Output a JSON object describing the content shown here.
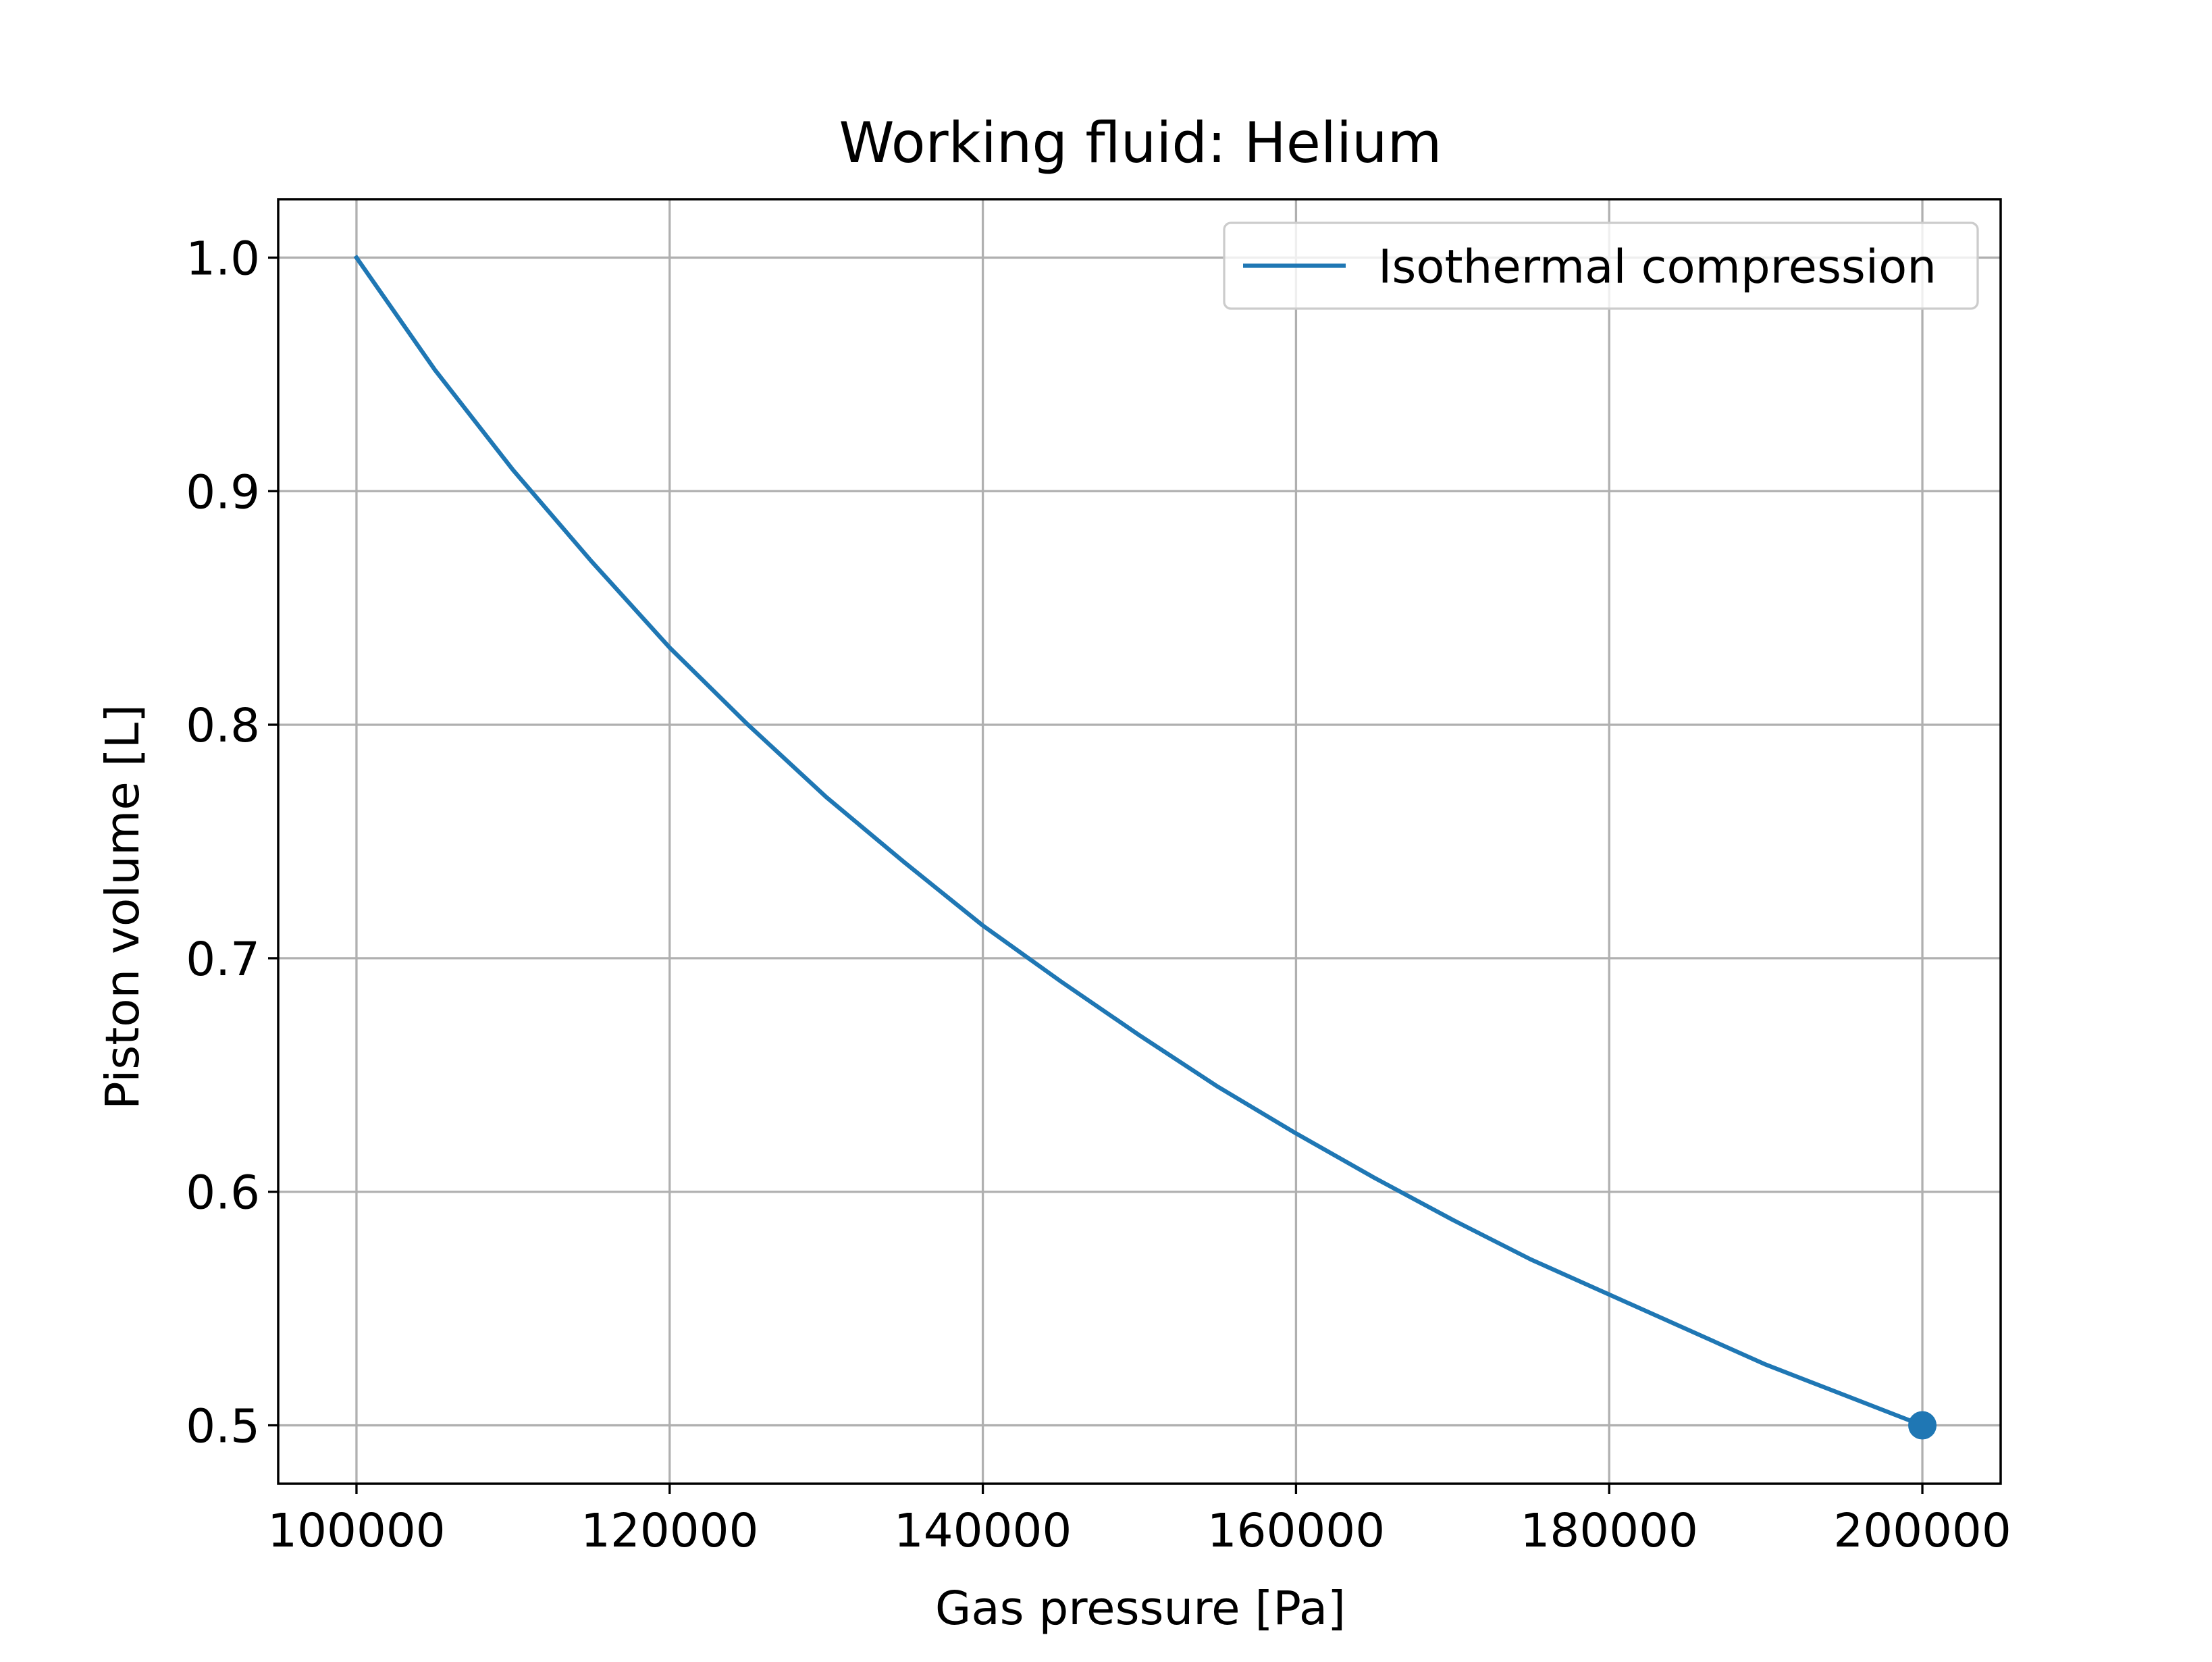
{
  "chart_data": {
    "type": "line",
    "title": "Working fluid: Helium",
    "xlabel": "Gas pressure [Pa]",
    "ylabel": "Piston volume [L]",
    "xlim": [
      95000,
      205000
    ],
    "ylim": [
      0.475,
      1.025
    ],
    "xticks": [
      100000,
      120000,
      140000,
      160000,
      180000,
      200000
    ],
    "xtick_labels": [
      "100000",
      "120000",
      "140000",
      "160000",
      "180000",
      "200000"
    ],
    "yticks": [
      0.5,
      0.6,
      0.7,
      0.8,
      0.9,
      1.0
    ],
    "ytick_labels": [
      "0.5",
      "0.6",
      "0.7",
      "0.8",
      "0.9",
      "1.0"
    ],
    "grid": true,
    "legend_position": "upper right",
    "series": [
      {
        "name": "Isothermal compression",
        "color": "#1f77b4",
        "x": [
          100000,
          105000,
          110000,
          115000,
          120000,
          125000,
          130000,
          135000,
          140000,
          145000,
          150000,
          155000,
          160000,
          165000,
          170000,
          175000,
          180000,
          185000,
          190000,
          195000,
          200000
        ],
        "y": [
          1.0,
          0.952,
          0.909,
          0.87,
          0.833,
          0.8,
          0.769,
          0.741,
          0.714,
          0.69,
          0.667,
          0.645,
          0.625,
          0.606,
          0.588,
          0.571,
          0.556,
          0.541,
          0.526,
          0.513,
          0.5
        ]
      }
    ],
    "marker_points": [
      {
        "x": 200000,
        "y": 0.5,
        "color": "#1f77b4"
      }
    ]
  }
}
